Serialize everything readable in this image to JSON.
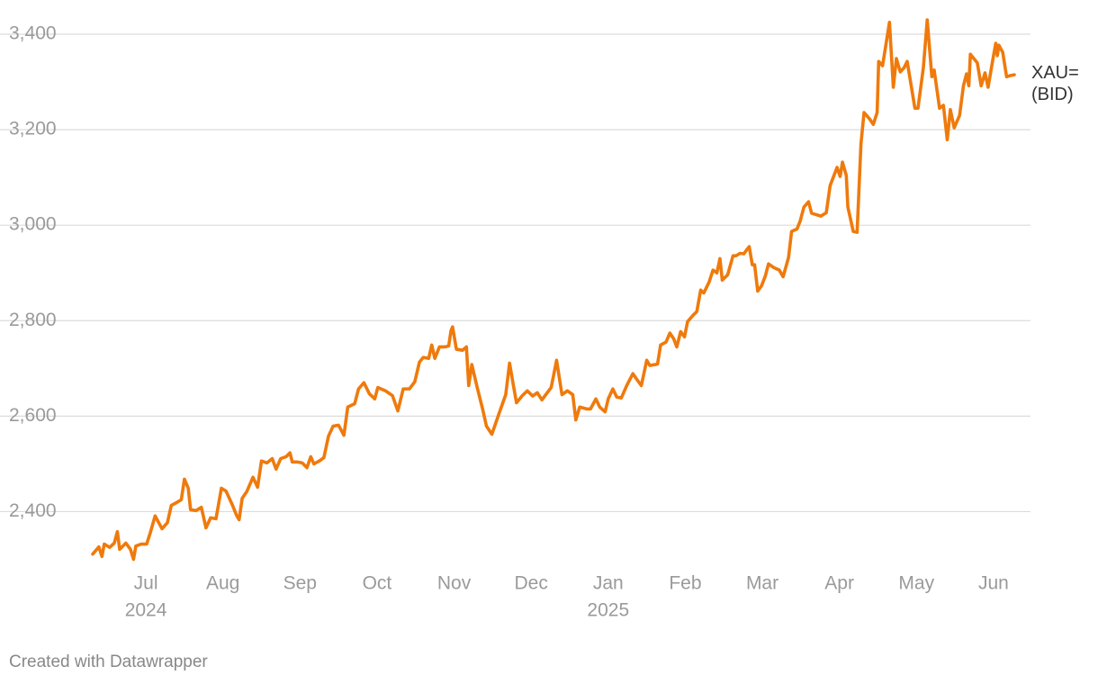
{
  "chart_data": {
    "type": "line",
    "x": [
      -0.69,
      -0.61,
      -0.57,
      -0.54,
      -0.47,
      -0.41,
      -0.37,
      -0.34,
      -0.26,
      -0.2,
      -0.16,
      -0.13,
      -0.06,
      0.01,
      0.06,
      0.12,
      0.21,
      0.28,
      0.33,
      0.4,
      0.46,
      0.5,
      0.55,
      0.58,
      0.65,
      0.72,
      0.78,
      0.84,
      0.91,
      0.98,
      1.04,
      1.12,
      1.18,
      1.21,
      1.25,
      1.31,
      1.39,
      1.45,
      1.5,
      1.57,
      1.64,
      1.69,
      1.75,
      1.82,
      1.87,
      1.9,
      1.96,
      2.03,
      2.09,
      2.14,
      2.18,
      2.25,
      2.31,
      2.37,
      2.43,
      2.5,
      2.57,
      2.62,
      2.71,
      2.76,
      2.83,
      2.9,
      2.97,
      3.01,
      3.11,
      3.2,
      3.27,
      3.34,
      3.42,
      3.49,
      3.55,
      3.6,
      3.67,
      3.71,
      3.75,
      3.81,
      3.88,
      3.93,
      3.96,
      3.98,
      4.03,
      4.11,
      4.16,
      4.19,
      4.23,
      4.3,
      4.37,
      4.42,
      4.49,
      4.58,
      4.67,
      4.72,
      4.77,
      4.81,
      4.88,
      4.95,
      5.02,
      5.08,
      5.14,
      5.19,
      5.26,
      5.33,
      5.4,
      5.47,
      5.54,
      5.58,
      5.63,
      5.72,
      5.77,
      5.84,
      5.89,
      5.96,
      6.0,
      6.06,
      6.11,
      6.17,
      6.24,
      6.32,
      6.38,
      6.43,
      6.5,
      6.54,
      6.64,
      6.68,
      6.75,
      6.8,
      6.85,
      6.89,
      6.94,
      6.99,
      7.03,
      7.1,
      7.15,
      7.2,
      7.24,
      7.31,
      7.36,
      7.41,
      7.45,
      7.48,
      7.55,
      7.62,
      7.66,
      7.71,
      7.76,
      7.8,
      7.83,
      7.87,
      7.9,
      7.94,
      7.99,
      8.04,
      8.08,
      8.15,
      8.22,
      8.27,
      8.34,
      8.38,
      8.45,
      8.49,
      8.54,
      8.6,
      8.64,
      8.76,
      8.83,
      8.88,
      8.97,
      9.01,
      9.04,
      9.09,
      9.11,
      9.18,
      9.23,
      9.28,
      9.32,
      9.39,
      9.44,
      9.49,
      9.51,
      9.56,
      9.6,
      9.65,
      9.7,
      9.74,
      9.79,
      9.84,
      9.88,
      9.98,
      10.02,
      10.09,
      10.14,
      10.2,
      10.23,
      10.3,
      10.35,
      10.4,
      10.44,
      10.49,
      10.56,
      10.61,
      10.65,
      10.68,
      10.7,
      10.79,
      10.84,
      10.89,
      10.93,
      11.0,
      11.03,
      11.05,
      11.07,
      11.12,
      11.17,
      11.21,
      11.27
    ],
    "series": [
      {
        "name": "XAU= (BID)",
        "color": "#ef7a0c",
        "values": [
          2311,
          2326,
          2306,
          2332,
          2325,
          2334,
          2358,
          2321,
          2334,
          2321,
          2300,
          2328,
          2332,
          2332,
          2357,
          2391,
          2364,
          2377,
          2413,
          2419,
          2425,
          2468,
          2449,
          2404,
          2402,
          2409,
          2366,
          2387,
          2385,
          2449,
          2443,
          2415,
          2391,
          2383,
          2428,
          2442,
          2472,
          2451,
          2506,
          2502,
          2511,
          2489,
          2511,
          2515,
          2523,
          2504,
          2504,
          2502,
          2492,
          2515,
          2500,
          2506,
          2513,
          2558,
          2579,
          2581,
          2560,
          2619,
          2626,
          2657,
          2670,
          2647,
          2636,
          2660,
          2653,
          2643,
          2611,
          2657,
          2657,
          2672,
          2713,
          2723,
          2721,
          2749,
          2721,
          2745,
          2745,
          2747,
          2779,
          2787,
          2740,
          2738,
          2745,
          2664,
          2708,
          2660,
          2615,
          2579,
          2562,
          2604,
          2645,
          2711,
          2664,
          2628,
          2642,
          2653,
          2642,
          2649,
          2634,
          2645,
          2660,
          2717,
          2645,
          2653,
          2645,
          2592,
          2619,
          2615,
          2615,
          2636,
          2619,
          2609,
          2636,
          2657,
          2640,
          2638,
          2664,
          2689,
          2675,
          2664,
          2717,
          2706,
          2709,
          2749,
          2755,
          2774,
          2762,
          2745,
          2777,
          2766,
          2798,
          2811,
          2819,
          2864,
          2858,
          2881,
          2906,
          2900,
          2930,
          2885,
          2896,
          2936,
          2936,
          2941,
          2940,
          2949,
          2955,
          2917,
          2917,
          2862,
          2873,
          2894,
          2919,
          2911,
          2906,
          2892,
          2932,
          2987,
          2992,
          3008,
          3038,
          3049,
          3025,
          3019,
          3026,
          3083,
          3121,
          3102,
          3132,
          3104,
          3038,
          2987,
          2985,
          3170,
          3236,
          3223,
          3211,
          3236,
          3343,
          3334,
          3374,
          3425,
          3289,
          3349,
          3321,
          3330,
          3343,
          3245,
          3245,
          3330,
          3430,
          3311,
          3325,
          3245,
          3251,
          3179,
          3242,
          3204,
          3230,
          3292,
          3317,
          3292,
          3358,
          3340,
          3292,
          3319,
          3289,
          3355,
          3381,
          3355,
          3377,
          3362,
          3311,
          3313,
          3315
        ]
      }
    ],
    "xlim": [
      -0.69,
      11.27
    ],
    "ylim": [
      2300,
      3450
    ],
    "xticks": [
      {
        "value": 0,
        "label": "Jul"
      },
      {
        "value": 1,
        "label": "Aug"
      },
      {
        "value": 2,
        "label": "Sep"
      },
      {
        "value": 3,
        "label": "Oct"
      },
      {
        "value": 4,
        "label": "Nov"
      },
      {
        "value": 5,
        "label": "Dec"
      },
      {
        "value": 6,
        "label": "Jan"
      },
      {
        "value": 7,
        "label": "Feb"
      },
      {
        "value": 8,
        "label": "Mar"
      },
      {
        "value": 9,
        "label": "Apr"
      },
      {
        "value": 10,
        "label": "May"
      },
      {
        "value": 11,
        "label": "Jun"
      }
    ],
    "xtick_years": [
      {
        "value": 0,
        "label": "2024"
      },
      {
        "value": 6,
        "label": "2025"
      }
    ],
    "yticks": [
      {
        "value": 2400,
        "label": "2,400"
      },
      {
        "value": 2600,
        "label": "2,600"
      },
      {
        "value": 2800,
        "label": "2,800"
      },
      {
        "value": 3000,
        "label": "3,000"
      },
      {
        "value": 3200,
        "label": "3,200"
      },
      {
        "value": 3400,
        "label": "3,400"
      }
    ],
    "grid": true
  },
  "footer": "Created with Datawrapper"
}
